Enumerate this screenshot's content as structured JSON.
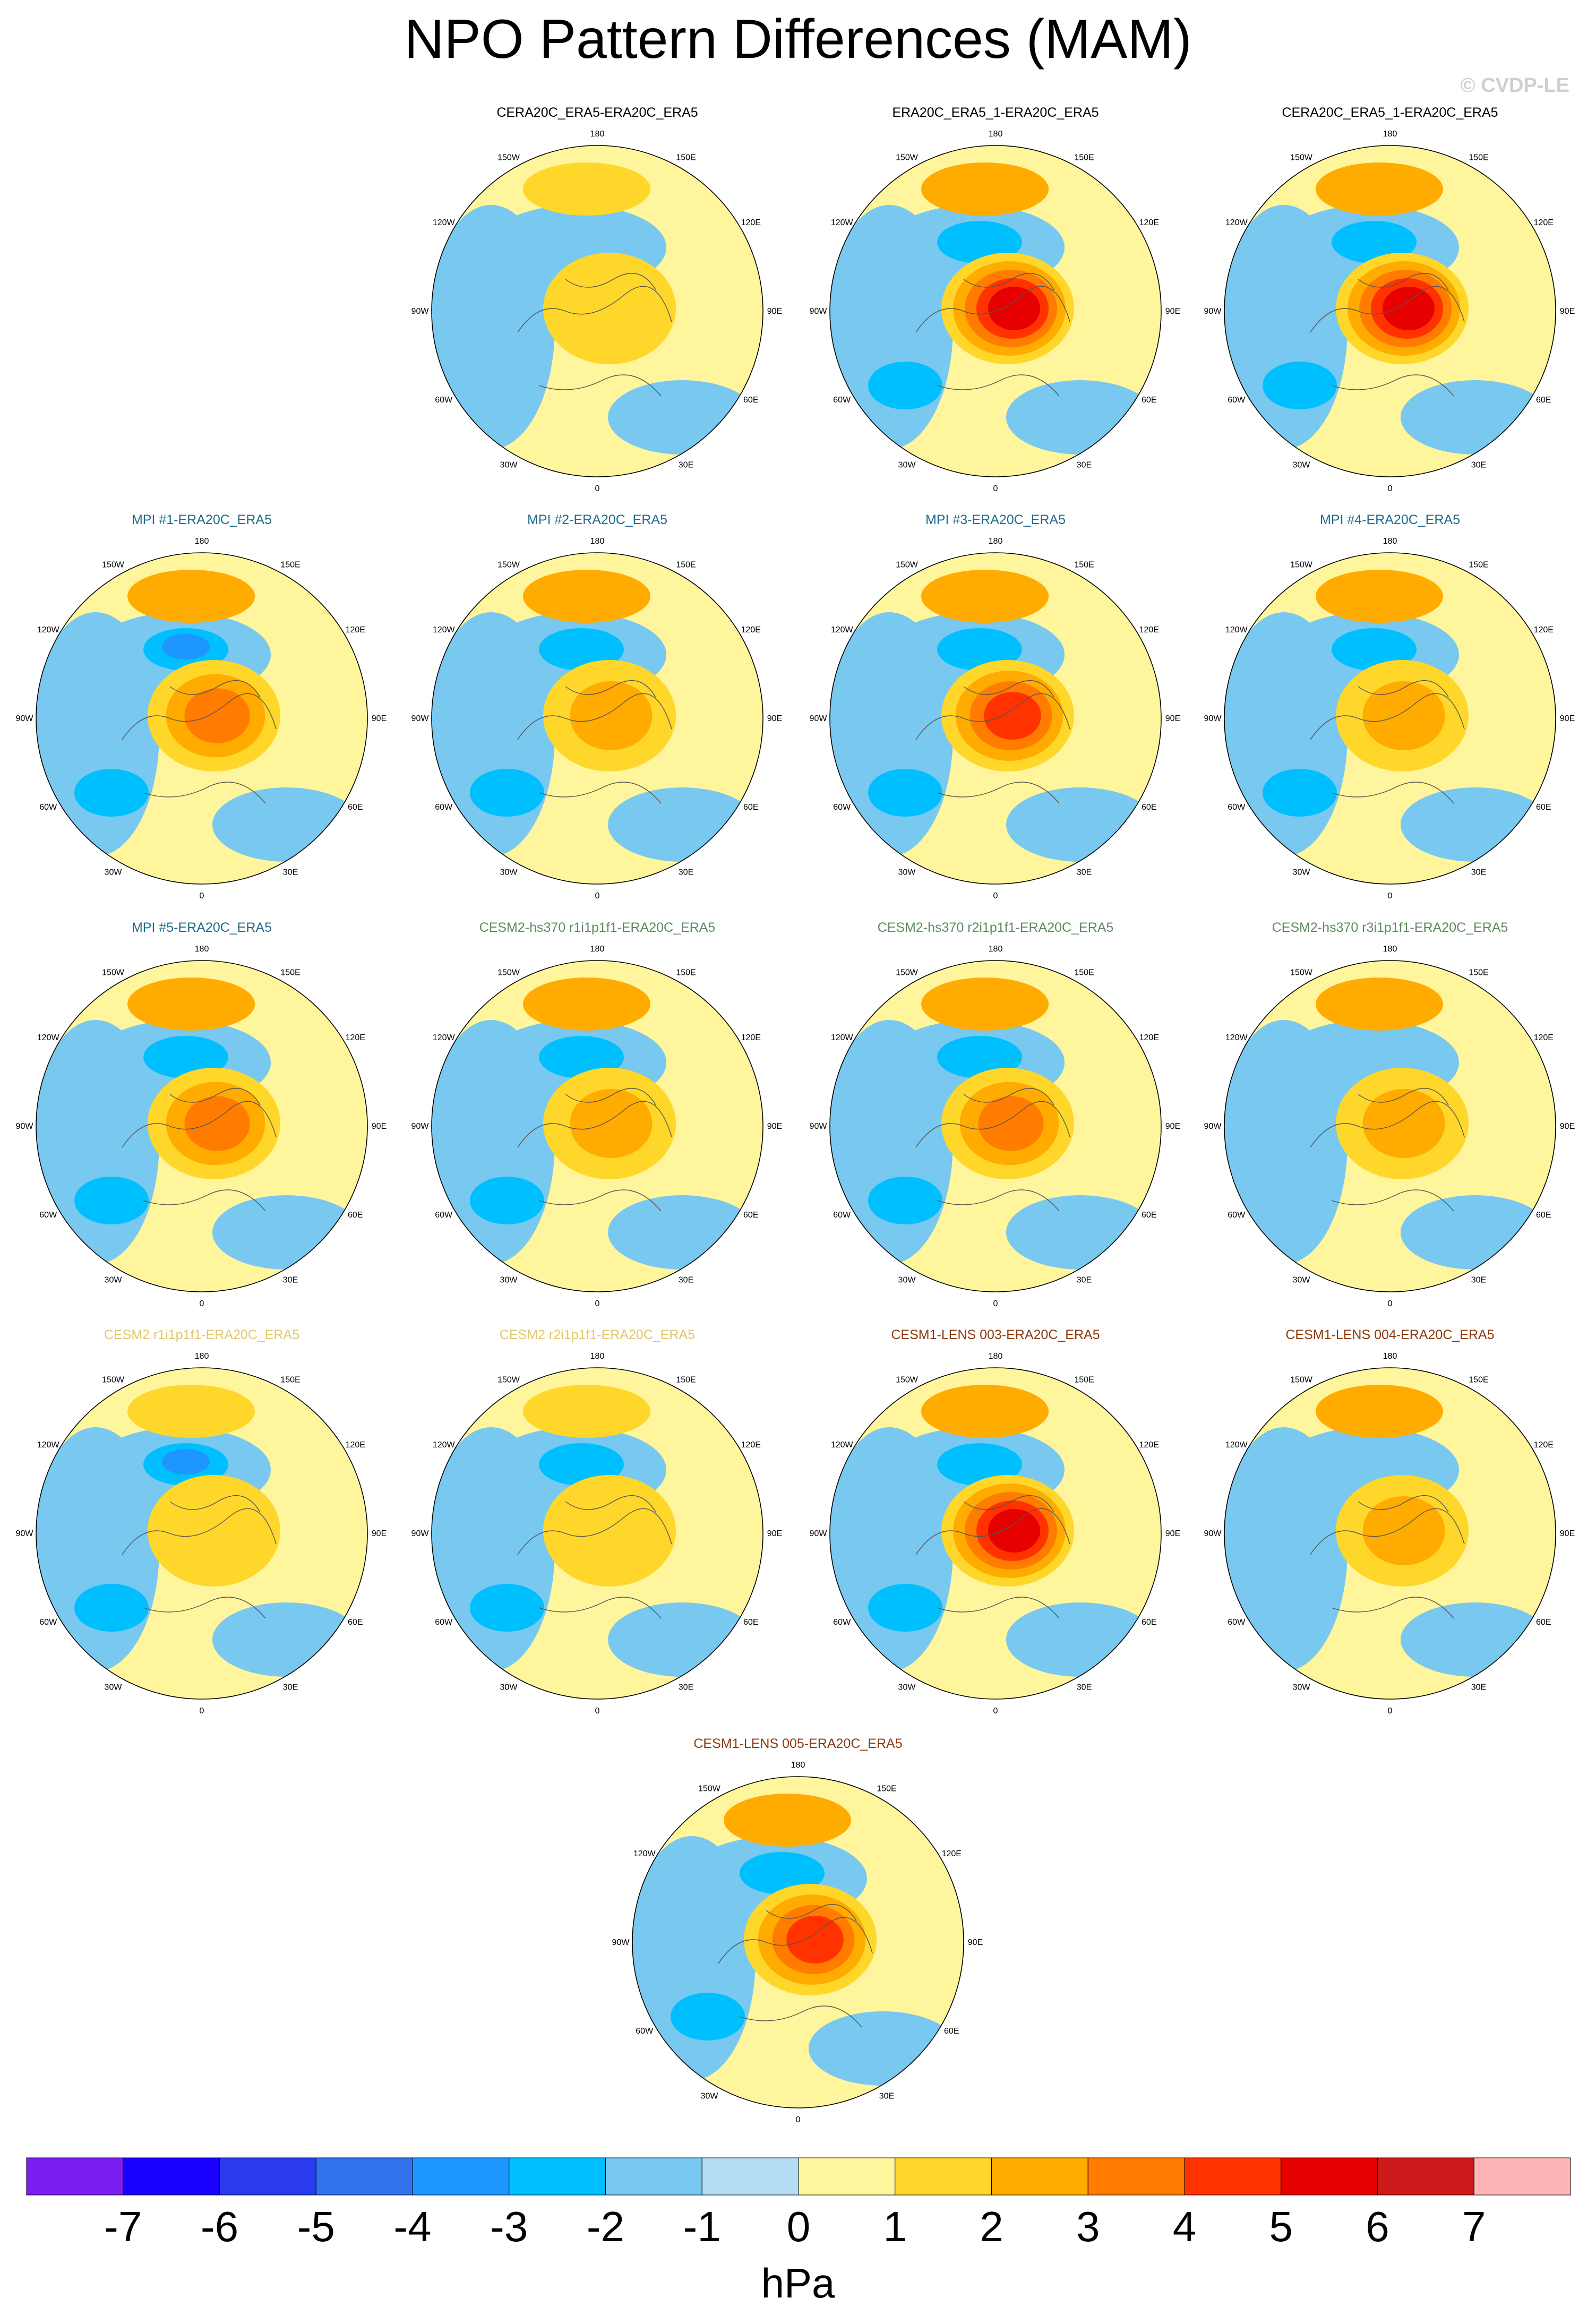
{
  "title": "NPO Pattern Differences (MAM)",
  "copyright": "© CVDP-LE",
  "colors": {
    "n-7": "#7a1ff0",
    "n-6": "#1a00ff",
    "n-5": "#2a3bee",
    "n-4": "#2f72ec",
    "n-3": "#1e96ff",
    "n-2": "#00bfff",
    "n-1": "#78c8f0",
    "n0": "#b4dcf2",
    "p0": "#fff59c",
    "p1": "#ffd72b",
    "p2": "#ffab00",
    "p3": "#ff7c00",
    "p4": "#ff3200",
    "p5": "#e60000",
    "p6": "#cc1a1a",
    "p7": "#ffb5b5"
  },
  "map_labels": {
    "top": "180",
    "bottom": "0",
    "left_lon": "90W",
    "right_lon": "90E",
    "upper_left": "150W",
    "upper_right": "150E",
    "mid_upper_left": "120W",
    "mid_upper_right": "120E",
    "mid_lower_left": "60W",
    "mid_lower_right": "60E",
    "lower_left": "30W",
    "lower_right": "30E"
  },
  "panels": [
    {
      "title": "CERA20C_ERA5-ERA20C_ERA5",
      "title_color": "#000000",
      "peak": 1,
      "low": -1
    },
    {
      "title": "ERA20C_ERA5_1-ERA20C_ERA5",
      "title_color": "#000000",
      "peak": 5,
      "low": -2
    },
    {
      "title": "CERA20C_ERA5_1-ERA20C_ERA5",
      "title_color": "#000000",
      "peak": 5,
      "low": -2
    },
    {
      "title": "MPI #1-ERA20C_ERA5",
      "title_color": "#1f6d8c",
      "peak": 3,
      "low": -3
    },
    {
      "title": "MPI #2-ERA20C_ERA5",
      "title_color": "#1f6d8c",
      "peak": 2,
      "low": -2
    },
    {
      "title": "MPI #3-ERA20C_ERA5",
      "title_color": "#1f6d8c",
      "peak": 4,
      "low": -2
    },
    {
      "title": "MPI #4-ERA20C_ERA5",
      "title_color": "#1f6d8c",
      "peak": 2,
      "low": -2
    },
    {
      "title": "MPI #5-ERA20C_ERA5",
      "title_color": "#1f6d8c",
      "peak": 3,
      "low": -2
    },
    {
      "title": "CESM2-hs370 r1i1p1f1-ERA20C_ERA5",
      "title_color": "#5f8a5f",
      "peak": 2,
      "low": -2
    },
    {
      "title": "CESM2-hs370 r2i1p1f1-ERA20C_ERA5",
      "title_color": "#5f8a5f",
      "peak": 3,
      "low": -2
    },
    {
      "title": "CESM2-hs370 r3i1p1f1-ERA20C_ERA5",
      "title_color": "#5f8a5f",
      "peak": 2,
      "low": -1
    },
    {
      "title": "CESM2 r1i1p1f1-ERA20C_ERA5",
      "title_color": "#e0c86e",
      "peak": 1,
      "low": -3
    },
    {
      "title": "CESM2 r2i1p1f1-ERA20C_ERA5",
      "title_color": "#e0c86e",
      "peak": 1,
      "low": -2
    },
    {
      "title": "CESM1-LENS 003-ERA20C_ERA5",
      "title_color": "#8b3a0f",
      "peak": 5,
      "low": -2
    },
    {
      "title": "CESM1-LENS 004-ERA20C_ERA5",
      "title_color": "#8b3a0f",
      "peak": 2,
      "low": -1
    },
    {
      "title": "CESM1-LENS 005-ERA20C_ERA5",
      "title_color": "#8b3a0f",
      "peak": 4,
      "low": -2
    }
  ],
  "colorbar": {
    "ticks": [
      "-7",
      "-6",
      "-5",
      "-4",
      "-3",
      "-2",
      "-1",
      "0",
      "1",
      "2",
      "3",
      "4",
      "5",
      "6",
      "7"
    ],
    "units": "hPa"
  }
}
